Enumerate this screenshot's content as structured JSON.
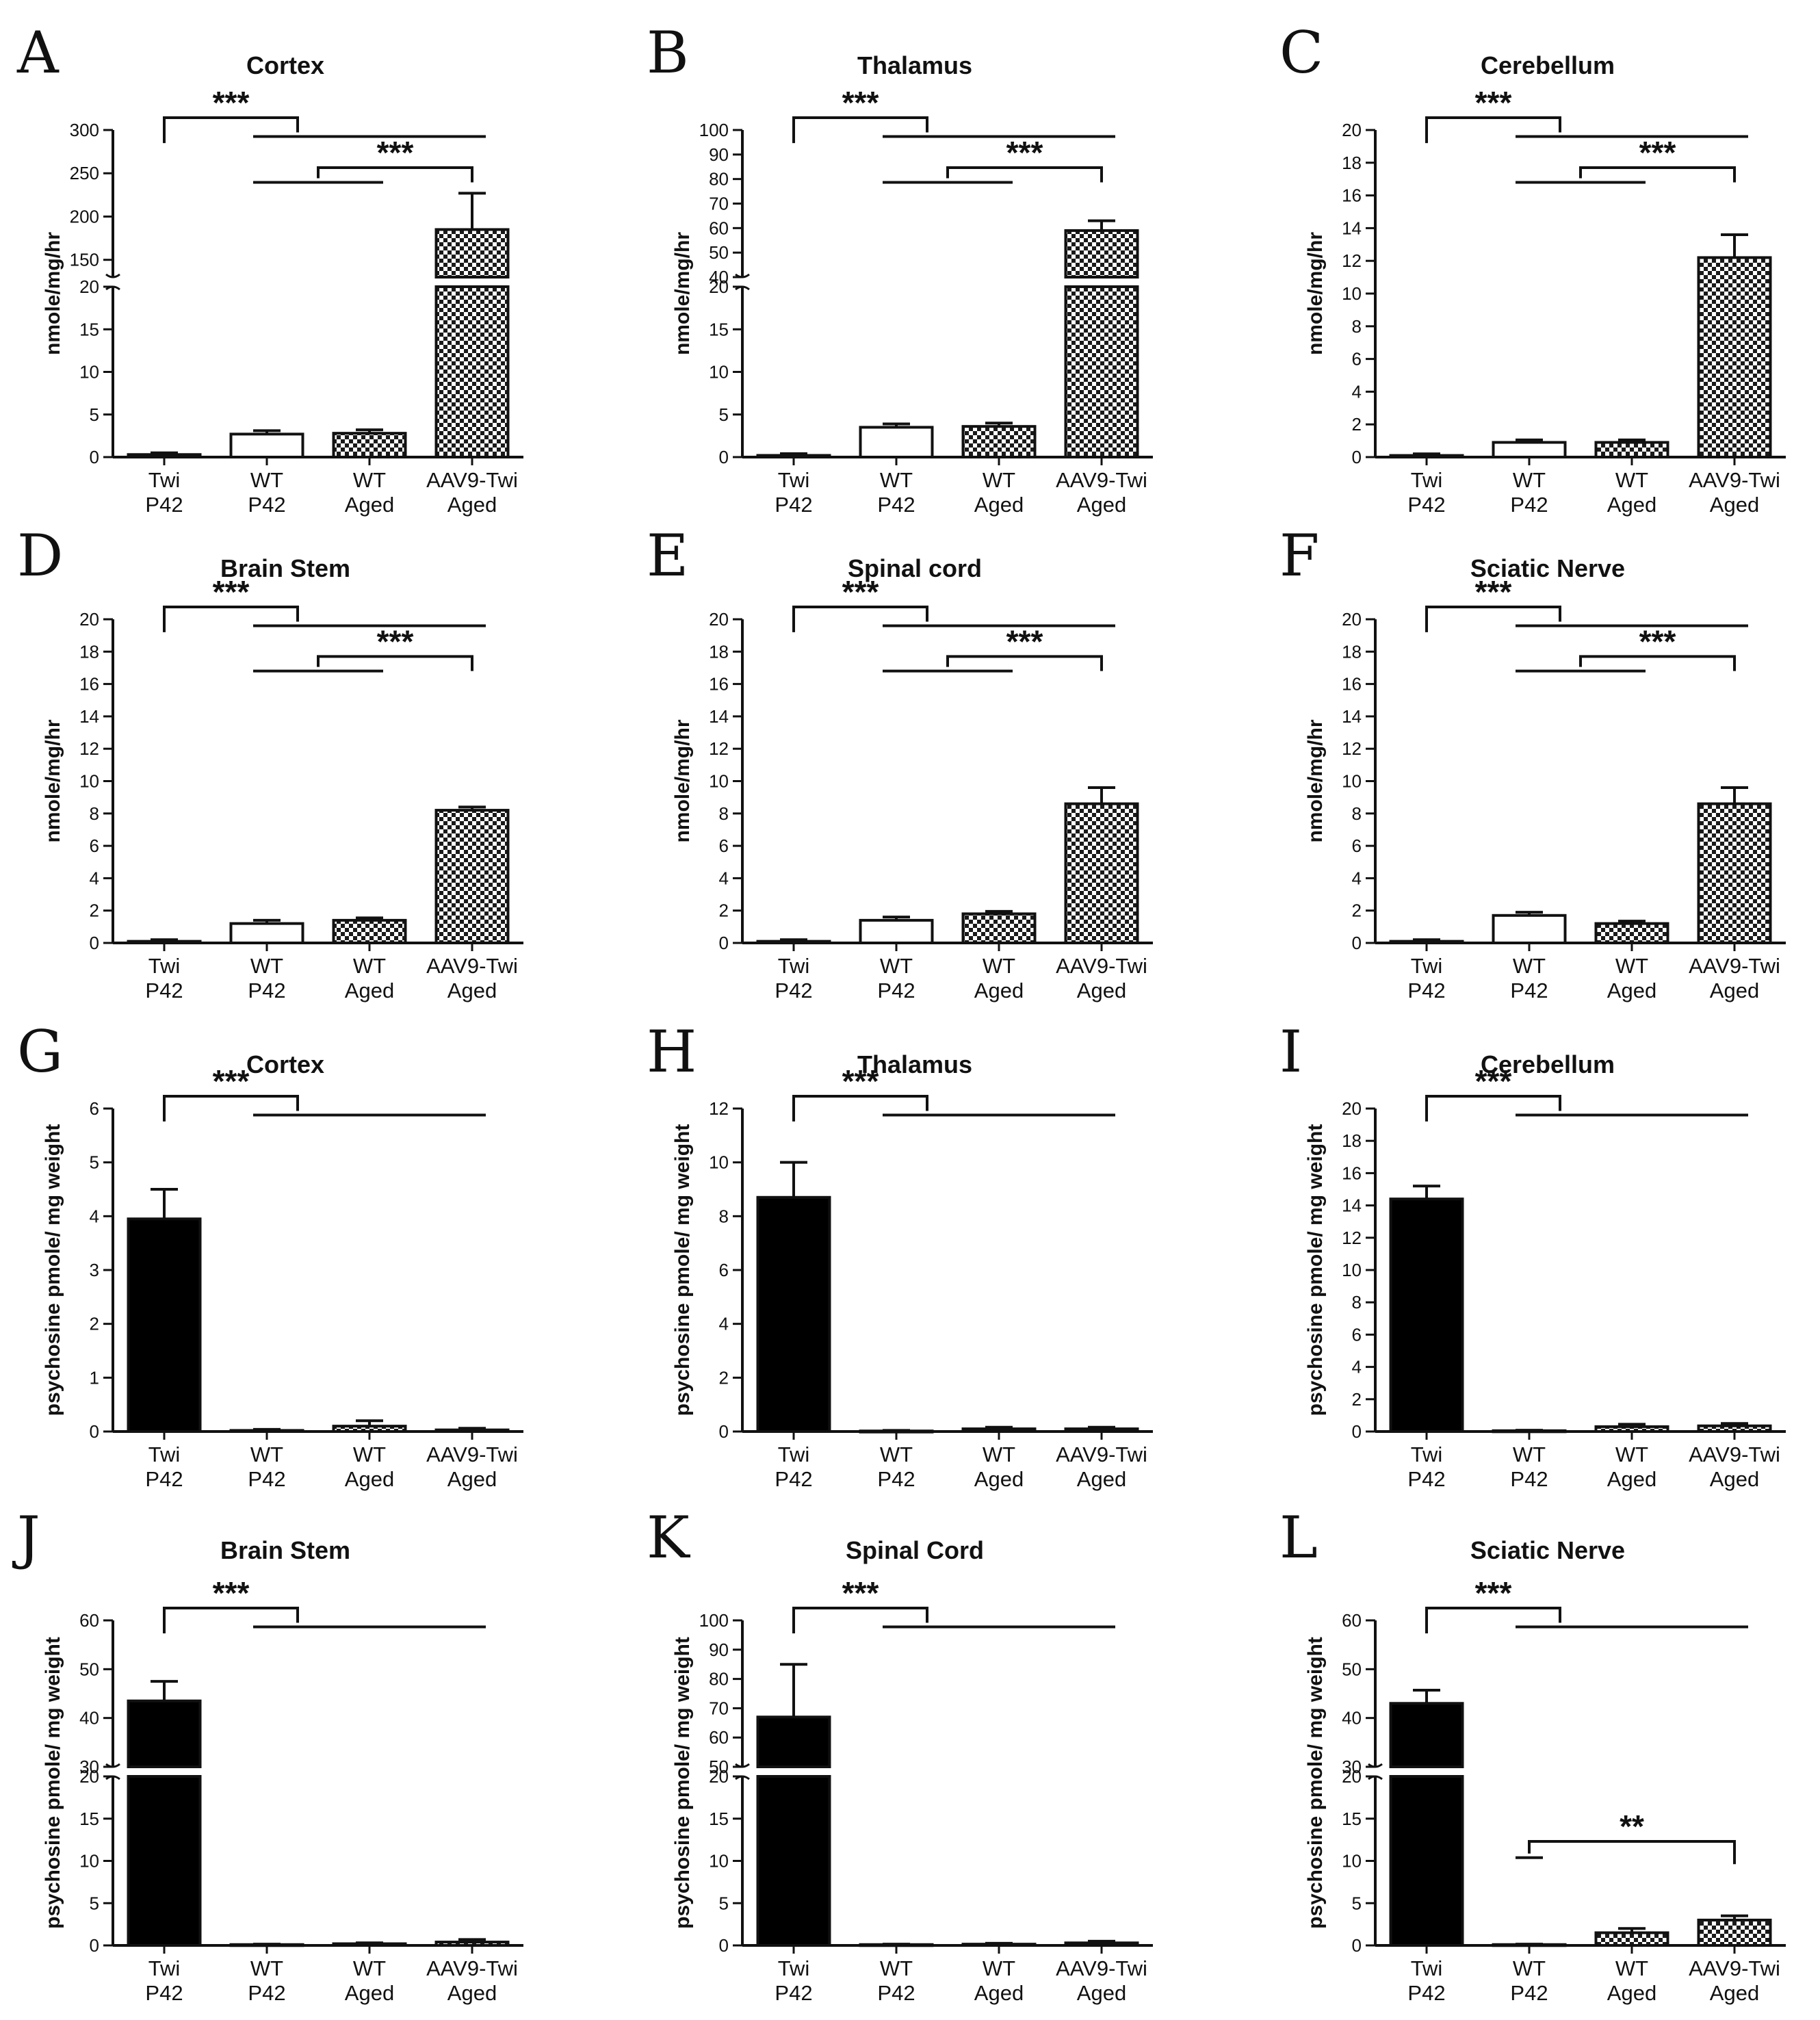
{
  "chart_data": [
    {
      "id": "A",
      "type": "bar",
      "title": "Cortex",
      "ylabel": "nmole/mg/hr",
      "categories": [
        [
          "Twi",
          "P42"
        ],
        [
          "WT",
          "P42"
        ],
        [
          "WT",
          "Aged"
        ],
        [
          "AAV9-Twi",
          "Aged"
        ]
      ],
      "values": [
        0.3,
        2.7,
        2.8,
        185
      ],
      "errors": [
        0.2,
        0.4,
        0.4,
        42
      ],
      "fills": [
        "black",
        "white",
        "check",
        "check"
      ],
      "segments": [
        {
          "min": 0,
          "max": 20,
          "ticks": [
            0,
            5,
            10,
            15,
            20
          ]
        },
        {
          "min": 130,
          "max": 300,
          "ticks": [
            150,
            200,
            250,
            300
          ]
        }
      ],
      "brackets": [
        {
          "from": 0,
          "to": [
            1,
            3
          ],
          "label": "***"
        },
        {
          "from": 3,
          "to": [
            1,
            2
          ],
          "label": "***"
        }
      ]
    },
    {
      "id": "B",
      "type": "bar",
      "title": "Thalamus",
      "ylabel": "nmole/mg/hr",
      "categories": [
        [
          "Twi",
          "P42"
        ],
        [
          "WT",
          "P42"
        ],
        [
          "WT",
          "Aged"
        ],
        [
          "AAV9-Twi",
          "Aged"
        ]
      ],
      "values": [
        0.2,
        3.5,
        3.6,
        59
      ],
      "errors": [
        0.2,
        0.4,
        0.4,
        4
      ],
      "fills": [
        "black",
        "white",
        "check",
        "check"
      ],
      "segments": [
        {
          "min": 0,
          "max": 20,
          "ticks": [
            0,
            5,
            10,
            15,
            20
          ]
        },
        {
          "min": 40,
          "max": 100,
          "ticks": [
            40,
            50,
            60,
            70,
            80,
            90,
            100
          ]
        }
      ],
      "brackets": [
        {
          "from": 0,
          "to": [
            1,
            3
          ],
          "label": "***"
        },
        {
          "from": 3,
          "to": [
            1,
            2
          ],
          "label": "***"
        }
      ]
    },
    {
      "id": "C",
      "type": "bar",
      "title": "Cerebellum",
      "ylabel": "nmole/mg/hr",
      "categories": [
        [
          "Twi",
          "P42"
        ],
        [
          "WT",
          "P42"
        ],
        [
          "WT",
          "Aged"
        ],
        [
          "AAV9-Twi",
          "Aged"
        ]
      ],
      "values": [
        0.1,
        0.9,
        0.9,
        12.2
      ],
      "errors": [
        0.1,
        0.15,
        0.15,
        1.4
      ],
      "fills": [
        "black",
        "white",
        "check",
        "check"
      ],
      "segments": [
        {
          "min": 0,
          "max": 20,
          "ticks": [
            0,
            2,
            4,
            6,
            8,
            10,
            12,
            14,
            16,
            18,
            20
          ]
        }
      ],
      "brackets": [
        {
          "from": 0,
          "to": [
            1,
            3
          ],
          "label": "***"
        },
        {
          "from": 3,
          "to": [
            1,
            2
          ],
          "label": "***"
        }
      ]
    },
    {
      "id": "D",
      "type": "bar",
      "title": "Brain Stem",
      "ylabel": "nmole/mg/hr",
      "categories": [
        [
          "Twi",
          "P42"
        ],
        [
          "WT",
          "P42"
        ],
        [
          "WT",
          "Aged"
        ],
        [
          "AAV9-Twi",
          "Aged"
        ]
      ],
      "values": [
        0.1,
        1.2,
        1.4,
        8.2
      ],
      "errors": [
        0.1,
        0.2,
        0.15,
        0.2
      ],
      "fills": [
        "black",
        "white",
        "check",
        "check"
      ],
      "segments": [
        {
          "min": 0,
          "max": 20,
          "ticks": [
            0,
            2,
            4,
            6,
            8,
            10,
            12,
            14,
            16,
            18,
            20
          ]
        }
      ],
      "brackets": [
        {
          "from": 0,
          "to": [
            1,
            3
          ],
          "label": "***"
        },
        {
          "from": 3,
          "to": [
            1,
            2
          ],
          "label": "***"
        }
      ]
    },
    {
      "id": "E",
      "type": "bar",
      "title": "Spinal cord",
      "ylabel": "nmole/mg/hr",
      "categories": [
        [
          "Twi",
          "P42"
        ],
        [
          "WT",
          "P42"
        ],
        [
          "WT",
          "Aged"
        ],
        [
          "AAV9-Twi",
          "Aged"
        ]
      ],
      "values": [
        0.1,
        1.4,
        1.8,
        8.6
      ],
      "errors": [
        0.1,
        0.2,
        0.15,
        1.0
      ],
      "fills": [
        "black",
        "white",
        "check",
        "check"
      ],
      "segments": [
        {
          "min": 0,
          "max": 20,
          "ticks": [
            0,
            2,
            4,
            6,
            8,
            10,
            12,
            14,
            16,
            18,
            20
          ]
        }
      ],
      "brackets": [
        {
          "from": 0,
          "to": [
            1,
            3
          ],
          "label": "***"
        },
        {
          "from": 3,
          "to": [
            1,
            2
          ],
          "label": "***"
        }
      ]
    },
    {
      "id": "F",
      "type": "bar",
      "title": "Sciatic Nerve",
      "ylabel": "nmole/mg/hr",
      "categories": [
        [
          "Twi",
          "P42"
        ],
        [
          "WT",
          "P42"
        ],
        [
          "WT",
          "Aged"
        ],
        [
          "AAV9-Twi",
          "Aged"
        ]
      ],
      "values": [
        0.1,
        1.7,
        1.2,
        8.6
      ],
      "errors": [
        0.1,
        0.2,
        0.15,
        1.0
      ],
      "fills": [
        "black",
        "white",
        "check",
        "check"
      ],
      "segments": [
        {
          "min": 0,
          "max": 20,
          "ticks": [
            0,
            2,
            4,
            6,
            8,
            10,
            12,
            14,
            16,
            18,
            20
          ]
        }
      ],
      "brackets": [
        {
          "from": 0,
          "to": [
            1,
            3
          ],
          "label": "***"
        },
        {
          "from": 3,
          "to": [
            1,
            2
          ],
          "label": "***"
        }
      ]
    },
    {
      "id": "G",
      "type": "bar",
      "title": "Cortex",
      "ylabel": "psychosine pmole/ mg weight",
      "categories": [
        [
          "Twi",
          "P42"
        ],
        [
          "WT",
          "P42"
        ],
        [
          "WT",
          "Aged"
        ],
        [
          "AAV9-Twi",
          "Aged"
        ]
      ],
      "values": [
        3.95,
        0.02,
        0.1,
        0.03
      ],
      "errors": [
        0.55,
        0.02,
        0.1,
        0.03
      ],
      "fills": [
        "black",
        "white",
        "check",
        "check"
      ],
      "segments": [
        {
          "min": 0,
          "max": 6,
          "ticks": [
            0,
            1,
            2,
            3,
            4,
            5,
            6
          ]
        }
      ],
      "brackets": [
        {
          "from": 0,
          "to": [
            1,
            3
          ],
          "label": "***"
        }
      ]
    },
    {
      "id": "H",
      "type": "bar",
      "title": "Thalamus",
      "ylabel": "psychosine pmole/ mg weight",
      "categories": [
        [
          "Twi",
          "P42"
        ],
        [
          "WT",
          "P42"
        ],
        [
          "WT",
          "Aged"
        ],
        [
          "AAV9-Twi",
          "Aged"
        ]
      ],
      "values": [
        8.7,
        0.02,
        0.1,
        0.1
      ],
      "errors": [
        1.3,
        0.02,
        0.06,
        0.06
      ],
      "fills": [
        "black",
        "white",
        "check",
        "check"
      ],
      "segments": [
        {
          "min": 0,
          "max": 12,
          "ticks": [
            0,
            2,
            4,
            6,
            8,
            10,
            12
          ]
        }
      ],
      "brackets": [
        {
          "from": 0,
          "to": [
            1,
            3
          ],
          "label": "***"
        }
      ]
    },
    {
      "id": "I",
      "type": "bar",
      "title": "Cerebellum",
      "ylabel": "psychosine pmole/ mg weight",
      "categories": [
        [
          "Twi",
          "P42"
        ],
        [
          "WT",
          "P42"
        ],
        [
          "WT",
          "Aged"
        ],
        [
          "AAV9-Twi",
          "Aged"
        ]
      ],
      "values": [
        14.4,
        0.05,
        0.3,
        0.35
      ],
      "errors": [
        0.8,
        0.03,
        0.15,
        0.15
      ],
      "fills": [
        "black",
        "white",
        "check",
        "check"
      ],
      "segments": [
        {
          "min": 0,
          "max": 20,
          "ticks": [
            0,
            2,
            4,
            6,
            8,
            10,
            12,
            14,
            16,
            18,
            20
          ]
        }
      ],
      "brackets": [
        {
          "from": 0,
          "to": [
            1,
            3
          ],
          "label": "***"
        }
      ]
    },
    {
      "id": "J",
      "type": "bar",
      "title": "Brain Stem",
      "ylabel": "psychosine pmole/ mg weight",
      "categories": [
        [
          "Twi",
          "P42"
        ],
        [
          "WT",
          "P42"
        ],
        [
          "WT",
          "Aged"
        ],
        [
          "AAV9-Twi",
          "Aged"
        ]
      ],
      "values": [
        43.5,
        0.1,
        0.2,
        0.4
      ],
      "errors": [
        4,
        0.05,
        0.1,
        0.3
      ],
      "fills": [
        "black",
        "white",
        "check",
        "check"
      ],
      "segments": [
        {
          "min": 0,
          "max": 20,
          "ticks": [
            0,
            5,
            10,
            15,
            20
          ]
        },
        {
          "min": 30,
          "max": 60,
          "ticks": [
            30,
            40,
            50,
            60
          ]
        }
      ],
      "brackets": [
        {
          "from": 0,
          "to": [
            1,
            3
          ],
          "label": "***"
        }
      ]
    },
    {
      "id": "K",
      "type": "bar",
      "title": "Spinal Cord",
      "ylabel": "psychosine pmole/ mg weight",
      "categories": [
        [
          "Twi",
          "P42"
        ],
        [
          "WT",
          "P42"
        ],
        [
          "WT",
          "Aged"
        ],
        [
          "AAV9-Twi",
          "Aged"
        ]
      ],
      "values": [
        67,
        0.1,
        0.15,
        0.3
      ],
      "errors": [
        18,
        0.05,
        0.1,
        0.2
      ],
      "fills": [
        "black",
        "white",
        "check",
        "check"
      ],
      "segments": [
        {
          "min": 0,
          "max": 20,
          "ticks": [
            0,
            5,
            10,
            15,
            20
          ]
        },
        {
          "min": 50,
          "max": 100,
          "ticks": [
            50,
            60,
            70,
            80,
            90,
            100
          ]
        }
      ],
      "brackets": [
        {
          "from": 0,
          "to": [
            1,
            3
          ],
          "label": "***"
        }
      ]
    },
    {
      "id": "L",
      "type": "bar",
      "title": "Sciatic Nerve",
      "ylabel": "psychosine pmole/ mg weight",
      "categories": [
        [
          "Twi",
          "P42"
        ],
        [
          "WT",
          "P42"
        ],
        [
          "WT",
          "Aged"
        ],
        [
          "AAV9-Twi",
          "Aged"
        ]
      ],
      "values": [
        43,
        0.1,
        1.5,
        3
      ],
      "errors": [
        2.7,
        0.05,
        0.5,
        0.5
      ],
      "fills": [
        "black",
        "white",
        "check",
        "check"
      ],
      "segments": [
        {
          "min": 0,
          "max": 20,
          "ticks": [
            0,
            5,
            10,
            15,
            20
          ]
        },
        {
          "min": 30,
          "max": 60,
          "ticks": [
            30,
            40,
            50,
            60
          ]
        }
      ],
      "brackets": [
        {
          "from": 0,
          "to": [
            1,
            3
          ],
          "label": "***"
        },
        {
          "from": 3,
          "to": [
            1
          ],
          "label": "**"
        }
      ]
    }
  ]
}
